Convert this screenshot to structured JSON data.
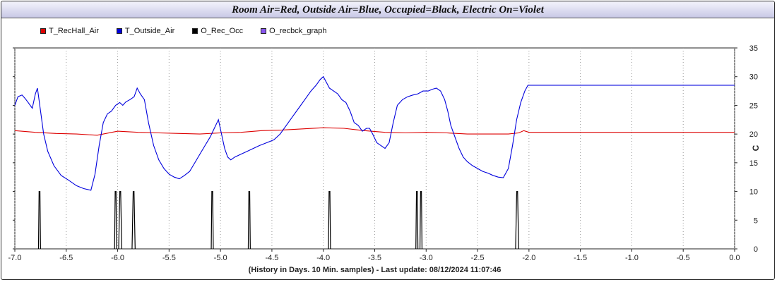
{
  "chart_data": {
    "type": "line",
    "title": "Room Air=Red, Outside Air=Blue, Occupied=Black, Electric On=Violet",
    "xlabel": "(History in Days. 10 Min. samples) - Last update: 08/12/2024 11:07:46",
    "ylabel": "C",
    "xlim": [
      -7.0,
      0.0
    ],
    "ylim": [
      0,
      35
    ],
    "x_ticks": [
      "-7.0",
      "-6.5",
      "-6.0",
      "-5.5",
      "-5.0",
      "-4.5",
      "-4.0",
      "-3.5",
      "-3.0",
      "-2.5",
      "-2.0",
      "-1.5",
      "-1.0",
      "-0.5",
      "0.0"
    ],
    "y_ticks": [
      "0",
      "5",
      "10",
      "15",
      "20",
      "25",
      "30",
      "35"
    ],
    "grid": "vertical dotted",
    "legend_position": "top-left",
    "series": [
      {
        "name": "T_RecHall_Air",
        "color": "#dd0000",
        "x": [
          -7.0,
          -6.8,
          -6.6,
          -6.4,
          -6.2,
          -6.0,
          -5.8,
          -5.6,
          -5.4,
          -5.2,
          -5.0,
          -4.8,
          -4.6,
          -4.4,
          -4.2,
          -4.0,
          -3.8,
          -3.6,
          -3.4,
          -3.2,
          -3.0,
          -2.8,
          -2.6,
          -2.4,
          -2.2,
          -2.1,
          -2.05,
          -2.0,
          -1.0,
          0.0
        ],
        "y": [
          20.6,
          20.3,
          20.1,
          20.0,
          19.8,
          20.5,
          20.3,
          20.2,
          20.1,
          20.0,
          20.2,
          20.3,
          20.6,
          20.7,
          20.9,
          21.1,
          21.0,
          20.6,
          20.3,
          20.2,
          20.3,
          20.2,
          20.0,
          20.0,
          20.0,
          20.2,
          20.6,
          20.3,
          20.3,
          20.3
        ]
      },
      {
        "name": "T_Outside_Air",
        "color": "#0000dd",
        "x": [
          -7.0,
          -6.97,
          -6.93,
          -6.9,
          -6.87,
          -6.83,
          -6.8,
          -6.78,
          -6.75,
          -6.72,
          -6.68,
          -6.62,
          -6.55,
          -6.48,
          -6.4,
          -6.33,
          -6.26,
          -6.22,
          -6.18,
          -6.14,
          -6.1,
          -6.06,
          -6.02,
          -5.98,
          -5.95,
          -5.92,
          -5.88,
          -5.84,
          -5.81,
          -5.78,
          -5.74,
          -5.7,
          -5.65,
          -5.6,
          -5.55,
          -5.5,
          -5.45,
          -5.4,
          -5.35,
          -5.3,
          -5.25,
          -5.2,
          -5.15,
          -5.1,
          -5.06,
          -5.02,
          -4.99,
          -4.96,
          -4.93,
          -4.9,
          -4.86,
          -4.8,
          -4.74,
          -4.68,
          -4.62,
          -4.55,
          -4.48,
          -4.42,
          -4.36,
          -4.3,
          -4.24,
          -4.18,
          -4.12,
          -4.07,
          -4.03,
          -4.0,
          -3.97,
          -3.94,
          -3.9,
          -3.86,
          -3.82,
          -3.78,
          -3.74,
          -3.7,
          -3.66,
          -3.62,
          -3.58,
          -3.55,
          -3.52,
          -3.48,
          -3.44,
          -3.4,
          -3.36,
          -3.32,
          -3.28,
          -3.23,
          -3.18,
          -3.13,
          -3.08,
          -3.03,
          -2.98,
          -2.94,
          -2.9,
          -2.86,
          -2.82,
          -2.79,
          -2.76,
          -2.72,
          -2.68,
          -2.64,
          -2.6,
          -2.55,
          -2.5,
          -2.45,
          -2.4,
          -2.35,
          -2.3,
          -2.25,
          -2.2,
          -2.16,
          -2.12,
          -2.08,
          -2.04,
          -2.01,
          -2.0,
          -1.0,
          0.0
        ],
        "y": [
          25.0,
          26.5,
          26.8,
          26.2,
          25.5,
          24.5,
          27.0,
          28.0,
          24.0,
          20.0,
          17.0,
          14.5,
          12.8,
          12.0,
          11.0,
          10.5,
          10.2,
          13.0,
          18.0,
          22.0,
          23.5,
          24.0,
          25.0,
          25.5,
          25.0,
          25.6,
          26.0,
          26.5,
          28.0,
          27.0,
          26.0,
          22.0,
          18.0,
          15.5,
          14.0,
          13.0,
          12.5,
          12.2,
          12.8,
          13.5,
          15.0,
          16.5,
          18.0,
          19.5,
          21.0,
          22.5,
          20.0,
          17.5,
          16.0,
          15.5,
          16.0,
          16.5,
          17.0,
          17.5,
          18.0,
          18.5,
          19.0,
          20.0,
          21.5,
          23.0,
          24.5,
          26.0,
          27.5,
          28.5,
          29.5,
          30.0,
          29.0,
          28.0,
          27.5,
          27.0,
          26.0,
          25.5,
          24.0,
          22.0,
          21.5,
          20.5,
          21.0,
          21.0,
          20.0,
          18.5,
          18.0,
          17.5,
          18.5,
          22.0,
          25.0,
          26.0,
          26.5,
          26.8,
          27.0,
          27.5,
          27.5,
          27.8,
          28.0,
          27.5,
          26.0,
          24.0,
          21.5,
          19.5,
          17.5,
          16.0,
          15.2,
          14.5,
          14.0,
          13.5,
          13.2,
          12.8,
          12.5,
          12.4,
          14.0,
          18.0,
          22.5,
          25.5,
          27.5,
          28.5,
          28.5,
          28.5,
          28.5
        ]
      },
      {
        "name": "O_Rec_Occ",
        "color": "#000000",
        "pulses": [
          {
            "x": -6.77,
            "w": 0.02,
            "y": 10
          },
          {
            "x": -6.03,
            "w": 0.02,
            "y": 10
          },
          {
            "x": -5.99,
            "w": 0.03,
            "y": 10
          },
          {
            "x": -5.86,
            "w": 0.03,
            "y": 10
          },
          {
            "x": -5.09,
            "w": 0.02,
            "y": 10
          },
          {
            "x": -4.73,
            "w": 0.02,
            "y": 10
          },
          {
            "x": -3.95,
            "w": 0.02,
            "y": 10
          },
          {
            "x": -3.1,
            "w": 0.02,
            "y": 10
          },
          {
            "x": -3.06,
            "w": 0.02,
            "y": 10
          },
          {
            "x": -2.13,
            "w": 0.03,
            "y": 10
          }
        ]
      },
      {
        "name": "O_recbck_graph",
        "color": "#8855ee",
        "pulses": []
      }
    ]
  },
  "ui": {
    "title": "Room Air=Red, Outside Air=Blue, Occupied=Black, Electric On=Violet",
    "footer": "(History in Days. 10 Min. samples) - Last update: 08/12/2024 11:07:46",
    "y_unit": "C",
    "legend": [
      {
        "label": "T_RecHall_Air",
        "color": "#dd0000"
      },
      {
        "label": "T_Outside_Air",
        "color": "#0000dd"
      },
      {
        "label": "O_Rec_Occ",
        "color": "#000000"
      },
      {
        "label": "O_recbck_graph",
        "color": "#8855ee"
      }
    ]
  }
}
